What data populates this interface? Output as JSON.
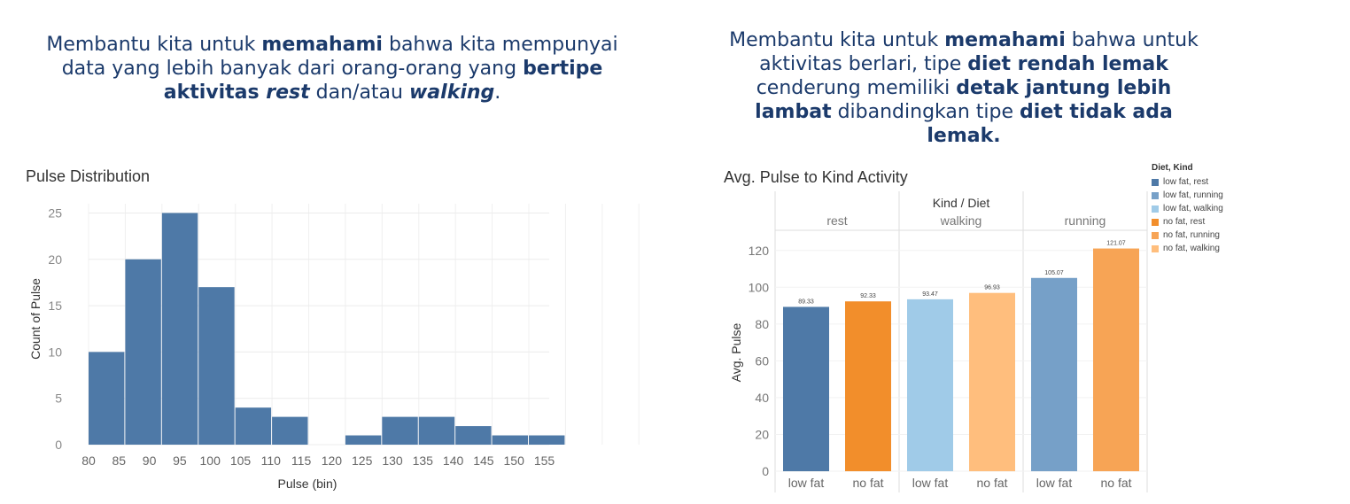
{
  "captions": {
    "left": [
      {
        "t": "Membantu kita untuk "
      },
      {
        "t": "memahami",
        "b": true
      },
      {
        "t": " bahwa kita mempunyai data yang lebih banyak dari orang-orang yang "
      },
      {
        "t": "bertipe aktivitas ",
        "b": true
      },
      {
        "t": "rest",
        "b": true,
        "i": true
      },
      {
        "t": " dan/atau "
      },
      {
        "t": "walking",
        "b": true,
        "i": true
      },
      {
        "t": "."
      }
    ],
    "right": [
      {
        "t": "Membantu kita untuk "
      },
      {
        "t": "memahami",
        "b": true
      },
      {
        "t": " bahwa untuk aktivitas berlari, tipe "
      },
      {
        "t": "diet rendah lemak",
        "b": true
      },
      {
        "t": " cenderung memiliki "
      },
      {
        "t": "detak jantung lebih lambat",
        "b": true
      },
      {
        "t": " dibandingkan tipe "
      },
      {
        "t": "diet tidak ada lemak.",
        "b": true
      }
    ]
  },
  "chart_data": [
    {
      "type": "bar",
      "title": "Pulse Distribution",
      "xlabel": "Pulse (bin)",
      "ylabel": "Count of Pulse",
      "bin_starts": [
        80,
        85,
        90,
        95,
        100,
        105,
        110,
        115,
        120,
        125,
        130,
        135,
        140,
        145,
        150
      ],
      "values": [
        10,
        20,
        25,
        17,
        4,
        3,
        1,
        3,
        3,
        2,
        1,
        1
      ],
      "bars": [
        {
          "start": 80,
          "value": 10
        },
        {
          "start": 85,
          "value": 20
        },
        {
          "start": 90,
          "value": 25
        },
        {
          "start": 95,
          "value": 17
        },
        {
          "start": 100,
          "value": 4
        },
        {
          "start": 105,
          "value": 3
        },
        {
          "start": 115,
          "value": 1
        },
        {
          "start": 120,
          "value": 3
        },
        {
          "start": 125,
          "value": 3
        },
        {
          "start": 130,
          "value": 2
        },
        {
          "start": 135,
          "value": 1
        },
        {
          "start": 140,
          "value": 1
        }
      ],
      "x_ticks": [
        "80",
        "85",
        "90",
        "95",
        "100",
        "105",
        "110",
        "115",
        "120",
        "125",
        "130",
        "135",
        "140",
        "145",
        "150",
        "155"
      ],
      "y_ticks": [
        "0",
        "5",
        "10",
        "15",
        "20",
        "25"
      ],
      "ylim": [
        0,
        26
      ],
      "grid": true,
      "color": "#4e79a7"
    },
    {
      "type": "bar",
      "title": "Avg. Pulse to Kind Activity",
      "header": "Kind / Diet",
      "ylabel": "Avg. Pulse",
      "groups": [
        "rest",
        "walking",
        "running"
      ],
      "diets": [
        "low fat",
        "no fat"
      ],
      "series": [
        {
          "kind": "rest",
          "diet": "low fat",
          "value": 89.33,
          "label": "89.33",
          "color": "#4e79a7"
        },
        {
          "kind": "rest",
          "diet": "no fat",
          "value": 92.33,
          "label": "92.33",
          "color": "#f28e2b"
        },
        {
          "kind": "walking",
          "diet": "low fat",
          "value": 93.47,
          "label": "93.47",
          "color": "#a0cbe8"
        },
        {
          "kind": "walking",
          "diet": "no fat",
          "value": 96.93,
          "label": "96.93",
          "color": "#ffbe7d"
        },
        {
          "kind": "running",
          "diet": "low fat",
          "value": 105.07,
          "label": "105.07",
          "color": "#76a0c8"
        },
        {
          "kind": "running",
          "diet": "no fat",
          "value": 121.07,
          "label": "121.07",
          "color": "#f7a455"
        }
      ],
      "y_ticks": [
        "0",
        "20",
        "40",
        "60",
        "80",
        "100",
        "120"
      ],
      "ylim": [
        0,
        130
      ],
      "legend": {
        "title": "Diet, Kind",
        "position": "right",
        "items": [
          {
            "label": "low fat, rest",
            "color": "#4e79a7"
          },
          {
            "label": "low fat, running",
            "color": "#76a0c8"
          },
          {
            "label": "low fat, walking",
            "color": "#a0cbe8"
          },
          {
            "label": "no fat, rest",
            "color": "#f28e2b"
          },
          {
            "label": "no fat, running",
            "color": "#f7a455"
          },
          {
            "label": "no fat, walking",
            "color": "#ffbe7d"
          }
        ]
      }
    }
  ]
}
